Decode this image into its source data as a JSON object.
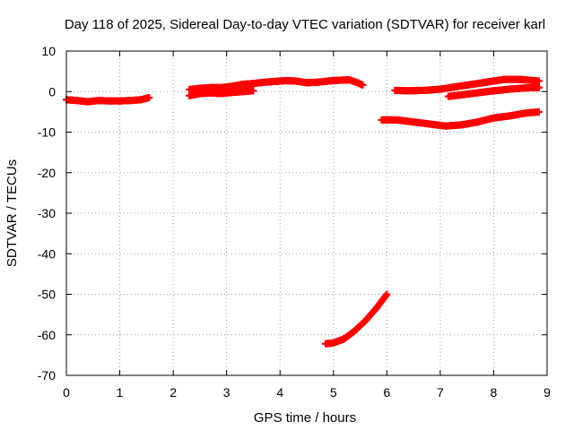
{
  "chart_data": {
    "type": "scatter",
    "title": "Day 118 of 2025, Sidereal Day-to-day VTEC variation (SDTVAR) for receiver karl",
    "xlabel": "GPS time / hours",
    "ylabel": "SDTVAR / TECUs",
    "xlim": [
      0,
      9
    ],
    "ylim": [
      -70,
      10
    ],
    "xticks": [
      "0",
      "1",
      "2",
      "3",
      "4",
      "5",
      "6",
      "7",
      "8",
      "9"
    ],
    "yticks": [
      "10",
      "0",
      "-10",
      "-20",
      "-30",
      "-40",
      "-50",
      "-60",
      "-70"
    ],
    "grid": true,
    "marker": "plus",
    "color": "#ff0000",
    "series": [
      {
        "x": [
          0.0,
          0.2,
          0.4,
          0.6,
          0.8,
          1.0,
          1.2,
          1.4,
          1.55
        ],
        "y": [
          -2.0,
          -2.2,
          -2.5,
          -2.2,
          -2.3,
          -2.3,
          -2.2,
          -2.0,
          -1.5
        ]
      },
      {
        "x": [
          2.3,
          2.5,
          2.7,
          2.9,
          3.1,
          3.3,
          3.5
        ],
        "y": [
          -1.0,
          -0.5,
          -0.3,
          -0.5,
          -0.2,
          0.0,
          0.2
        ]
      },
      {
        "x": [
          2.3,
          2.5,
          2.7,
          2.9,
          3.1,
          3.3,
          3.5,
          3.7,
          3.9,
          4.1,
          4.3,
          4.5,
          4.7,
          4.9,
          5.1,
          5.3,
          5.45,
          5.55
        ],
        "y": [
          0.5,
          0.8,
          1.0,
          1.0,
          1.3,
          1.8,
          2.0,
          2.3,
          2.5,
          2.7,
          2.6,
          2.2,
          2.3,
          2.6,
          2.8,
          2.9,
          2.2,
          1.6
        ]
      },
      {
        "x": [
          6.15,
          6.4,
          6.7,
          7.0,
          7.3,
          7.6,
          7.9,
          8.2,
          8.5,
          8.85
        ],
        "y": [
          0.3,
          0.2,
          0.3,
          0.6,
          1.2,
          1.8,
          2.4,
          3.0,
          3.0,
          2.6
        ]
      },
      {
        "x": [
          7.15,
          7.4,
          7.7,
          8.0,
          8.3,
          8.6,
          8.85
        ],
        "y": [
          -1.2,
          -0.8,
          -0.3,
          0.2,
          0.6,
          0.9,
          1.0
        ]
      },
      {
        "x": [
          5.9,
          6.2,
          6.5,
          6.8,
          7.1,
          7.4,
          7.7,
          8.0,
          8.3,
          8.6,
          8.85
        ],
        "y": [
          -7.0,
          -7.0,
          -7.5,
          -8.0,
          -8.5,
          -8.2,
          -7.5,
          -6.5,
          -6.0,
          -5.3,
          -5.0
        ]
      },
      {
        "x": [
          4.85,
          5.0,
          5.2,
          5.4,
          5.6,
          5.8,
          6.0
        ],
        "y": [
          -62.2,
          -62.0,
          -61.0,
          -59.0,
          -56.5,
          -53.5,
          -50.0
        ]
      }
    ]
  }
}
